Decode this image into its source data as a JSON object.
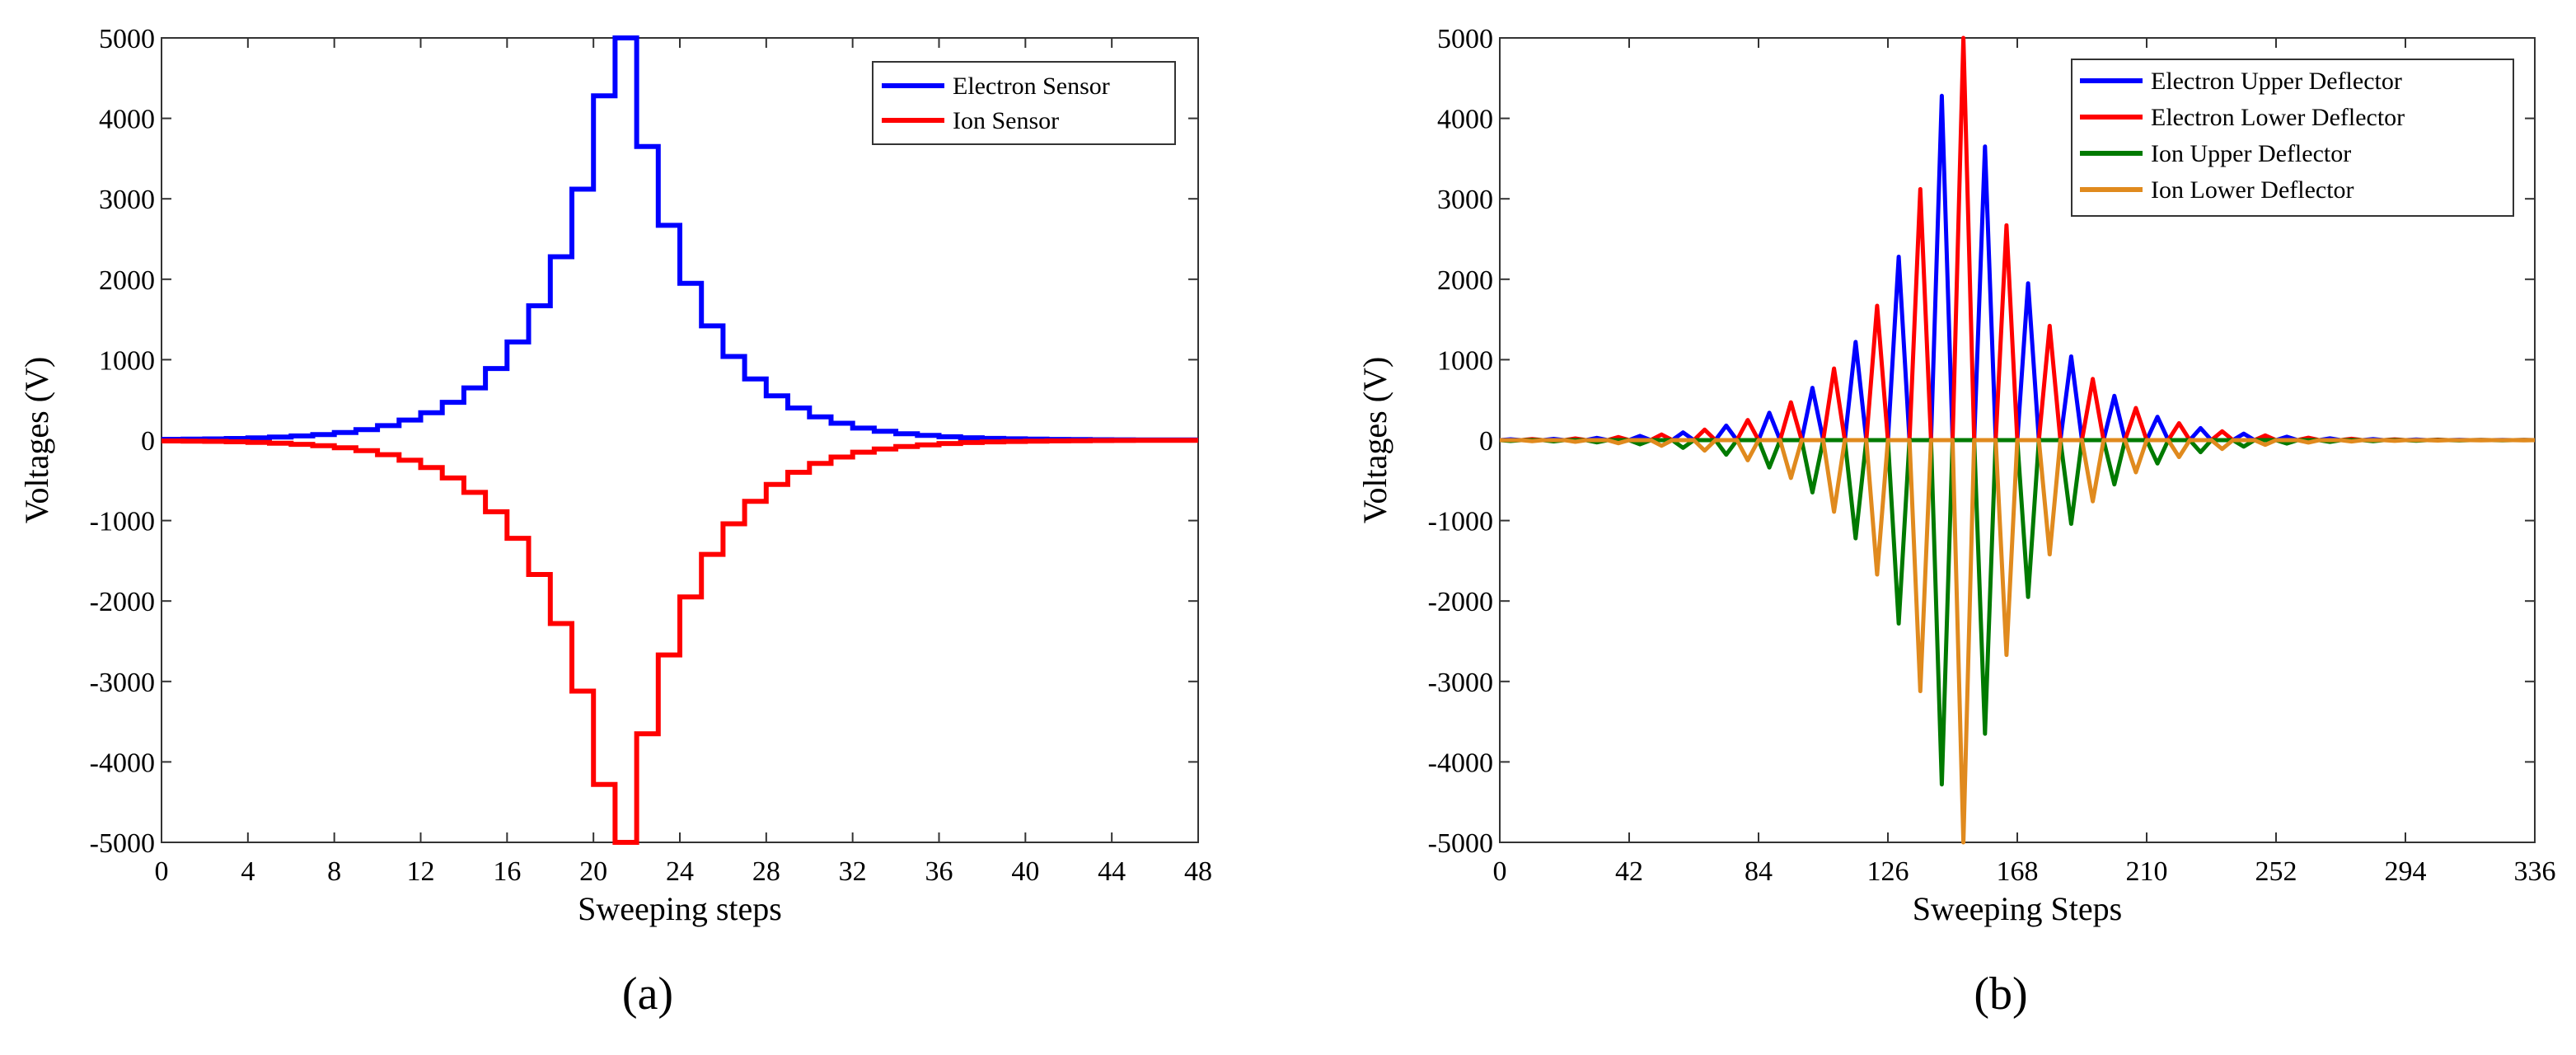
{
  "chart_data": [
    {
      "type": "line",
      "panel_label": "(a)",
      "xlabel": "Sweeping steps",
      "ylabel": "Voltages (V)",
      "xlim": [
        0,
        48
      ],
      "ylim": [
        -5000,
        5000
      ],
      "xticks": [
        0,
        4,
        8,
        12,
        16,
        20,
        24,
        28,
        32,
        36,
        40,
        44,
        48
      ],
      "yticks": [
        5000,
        4000,
        3000,
        2000,
        1000,
        0,
        -1000,
        -2000,
        -3000,
        -4000,
        -5000
      ],
      "grid": false,
      "legend_position": "top-right",
      "step_x": [
        0,
        1,
        2,
        3,
        4,
        5,
        6,
        7,
        8,
        9,
        10,
        11,
        12,
        13,
        14,
        15,
        16,
        17,
        18,
        19,
        20,
        21,
        22,
        23,
        24,
        25,
        26,
        27,
        28,
        29,
        30,
        31,
        32,
        33,
        34,
        35,
        36,
        37,
        38,
        39,
        40,
        41,
        42,
        43,
        44,
        45,
        46,
        47,
        48
      ],
      "series": [
        {
          "name": "Electron Sensor",
          "color": "#0000ff",
          "values": [
            10,
            12,
            15,
            20,
            28,
            38,
            52,
            70,
            95,
            130,
            180,
            250,
            340,
            470,
            650,
            890,
            1220,
            1670,
            2280,
            3120,
            4280,
            5000,
            3650,
            2670,
            1950,
            1420,
            1040,
            760,
            550,
            400,
            290,
            210,
            150,
            110,
            80,
            58,
            42,
            30,
            22,
            16,
            12,
            9,
            7,
            5,
            4,
            3,
            3,
            2,
            2
          ]
        },
        {
          "name": "Ion Sensor",
          "color": "#ff0000",
          "values": [
            -10,
            -12,
            -15,
            -20,
            -28,
            -38,
            -52,
            -70,
            -95,
            -130,
            -180,
            -250,
            -340,
            -470,
            -650,
            -890,
            -1220,
            -1670,
            -2280,
            -3120,
            -4280,
            -5000,
            -3650,
            -2670,
            -1950,
            -1420,
            -1040,
            -760,
            -550,
            -400,
            -290,
            -210,
            -150,
            -110,
            -80,
            -58,
            -42,
            -30,
            -22,
            -16,
            -12,
            -9,
            -7,
            -5,
            -4,
            -3,
            -3,
            -2,
            -2
          ]
        }
      ]
    },
    {
      "type": "line",
      "panel_label": "(b)",
      "xlabel": "Sweeping Steps",
      "ylabel": "Voltages (V)",
      "xlim": [
        0,
        336
      ],
      "ylim": [
        -5000,
        5000
      ],
      "xticks": [
        0,
        42,
        84,
        126,
        168,
        210,
        252,
        294,
        336
      ],
      "yticks": [
        5000,
        4000,
        3000,
        2000,
        1000,
        0,
        -1000,
        -2000,
        -3000,
        -4000,
        -5000
      ],
      "grid": false,
      "legend_position": "top-right",
      "sample_interval": 7,
      "peak_values": [
        10,
        12,
        15,
        20,
        28,
        38,
        52,
        70,
        95,
        130,
        180,
        250,
        340,
        470,
        650,
        890,
        1220,
        1670,
        2280,
        3120,
        4280,
        5000,
        3650,
        2670,
        1950,
        1420,
        1040,
        760,
        550,
        400,
        290,
        210,
        150,
        110,
        80,
        58,
        42,
        30,
        22,
        16,
        12,
        9,
        7,
        5,
        4,
        3,
        3,
        2,
        2
      ],
      "series": [
        {
          "name": "Electron Upper Deflector",
          "color": "#0000ff",
          "phase": 0,
          "sign": 1
        },
        {
          "name": "Electron Lower Deflector",
          "color": "#ff0000",
          "phase": 1,
          "sign": 1
        },
        {
          "name": "Ion Upper Deflector",
          "color": "#007a00",
          "phase": 0,
          "sign": -1
        },
        {
          "name": "Ion Lower Deflector",
          "color": "#e08a1e",
          "phase": 1,
          "sign": -1
        }
      ]
    }
  ]
}
